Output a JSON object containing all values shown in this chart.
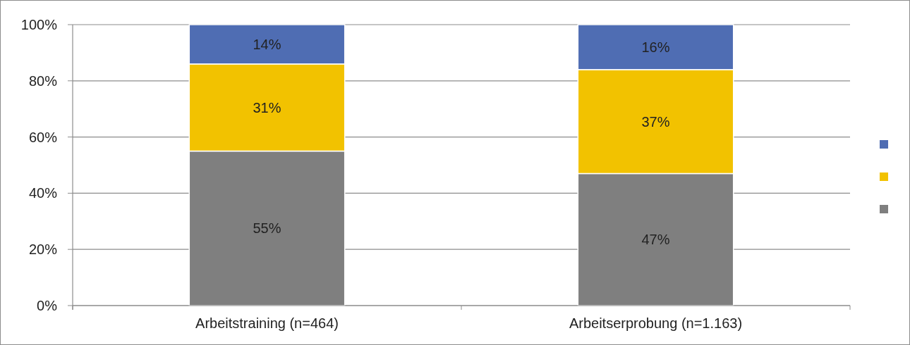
{
  "chart_data": {
    "type": "bar",
    "stacked": true,
    "categories": [
      "Arbeitstraining (n=464)",
      "Arbeitserprobung (n=1.163)"
    ],
    "series": [
      {
        "color": "#7f7f7f",
        "values": [
          55,
          47
        ]
      },
      {
        "color": "#f2c200",
        "values": [
          31,
          37
        ]
      },
      {
        "color": "#4f6db3",
        "values": [
          14,
          16
        ]
      }
    ],
    "ylim": [
      0,
      100
    ],
    "yticks": [
      {
        "value": 0,
        "label": "0%"
      },
      {
        "value": 20,
        "label": "20%"
      },
      {
        "value": 40,
        "label": "40%"
      },
      {
        "value": 60,
        "label": "60%"
      },
      {
        "value": 80,
        "label": "80%"
      },
      {
        "value": 100,
        "label": "100%"
      }
    ],
    "value_labels": [
      [
        "55%",
        "47%"
      ],
      [
        "31%",
        "37%"
      ],
      [
        "14%",
        "16%"
      ]
    ],
    "grid": "y"
  }
}
